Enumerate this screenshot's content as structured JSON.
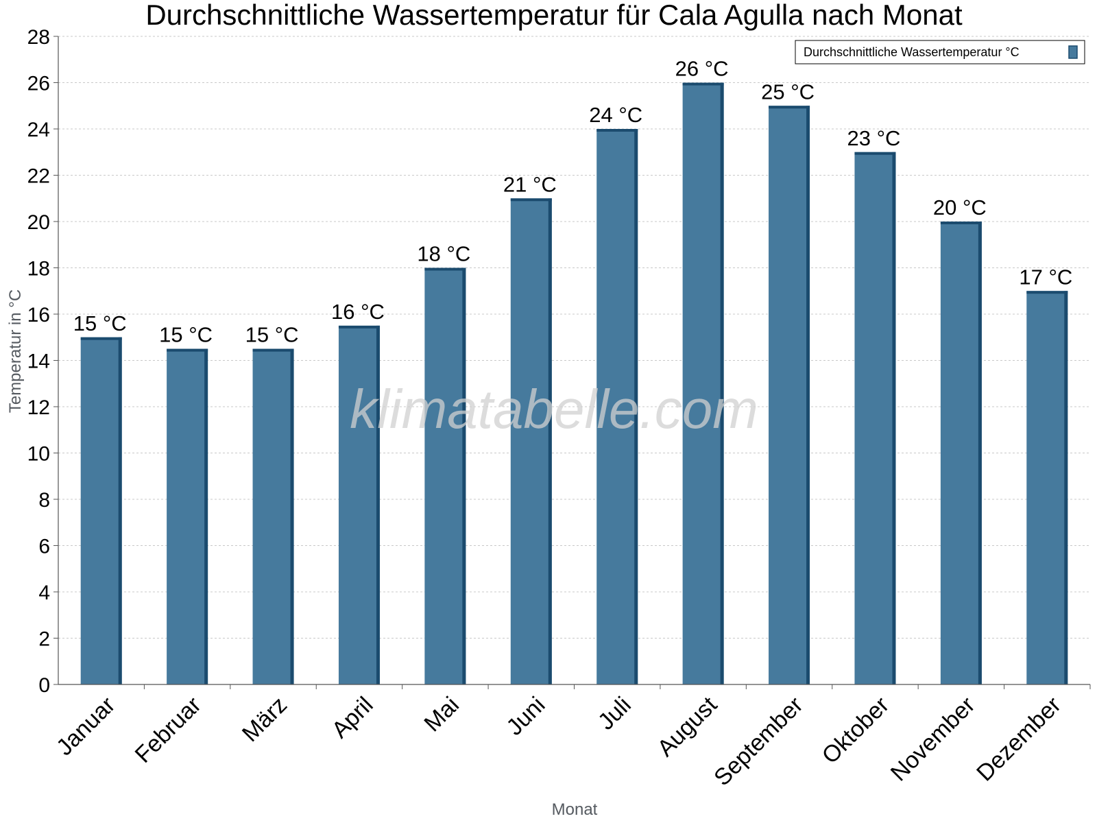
{
  "chart_data": {
    "type": "bar",
    "title": "Durchschnittliche Wassertemperatur für Cala Agulla nach Monat",
    "xlabel": "Monat",
    "ylabel": "Temperatur in °C",
    "ylim": [
      0,
      28
    ],
    "yticks": [
      "0",
      "2",
      "4",
      "6",
      "8",
      "10",
      "12",
      "14",
      "16",
      "18",
      "20",
      "22",
      "24",
      "26",
      "28"
    ],
    "categories": [
      "Januar",
      "Februar",
      "März",
      "April",
      "Mai",
      "Juni",
      "Juli",
      "August",
      "September",
      "Oktober",
      "November",
      "Dezember"
    ],
    "series": [
      {
        "name": "Durchschnittliche Wassertemperatur °C",
        "values": [
          15,
          14.5,
          14.5,
          15.5,
          18,
          21,
          24,
          26,
          25,
          23,
          20,
          17
        ],
        "labels": [
          "15 °C",
          "15 °C",
          "15 °C",
          "16 °C",
          "18 °C",
          "21 °C",
          "24 °C",
          "26 °C",
          "25 °C",
          "23 °C",
          "20 °C",
          "17 °C"
        ]
      }
    ],
    "grid": true,
    "legend_position": "top-right",
    "colors": {
      "bar": "#467a9d",
      "bar_dark": "#1b4b6e",
      "grid": "#c8c8c8"
    },
    "watermark": "klimatabelle.com"
  }
}
